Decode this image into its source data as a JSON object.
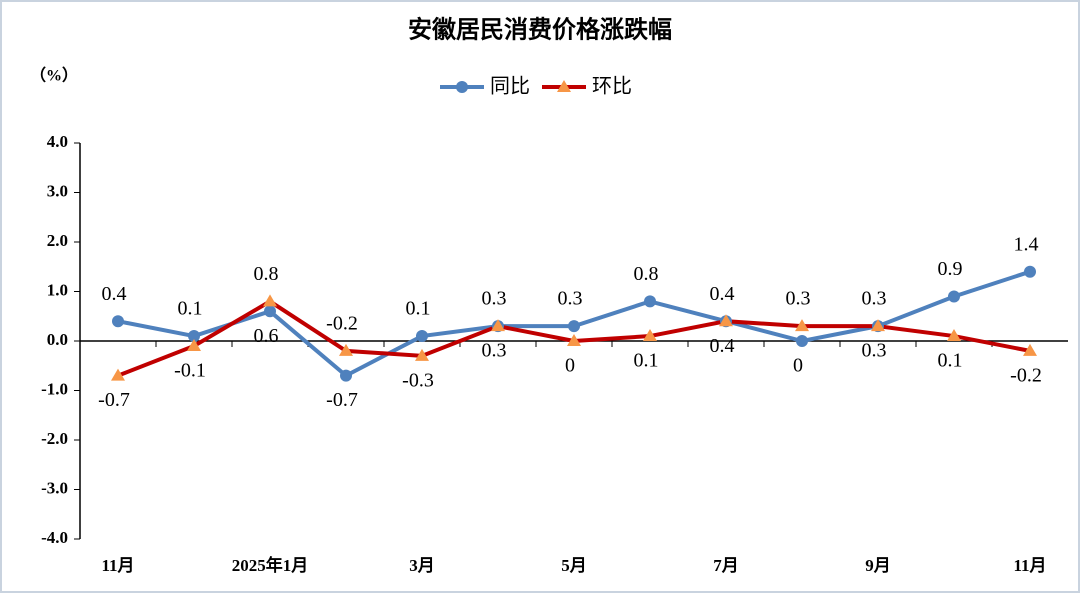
{
  "chart_data": {
    "type": "line",
    "title": "安徽居民消费价格涨跌幅",
    "y_unit": "（%）",
    "categories": [
      "11月",
      null,
      "2025年1月",
      null,
      "3月",
      null,
      "5月",
      null,
      "7月",
      null,
      "9月",
      null,
      "11月"
    ],
    "series": [
      {
        "name": "同比",
        "color": "#4f81bd",
        "marker": "circle",
        "values": [
          0.4,
          0.1,
          0.6,
          -0.7,
          0.1,
          0.3,
          0.3,
          0.8,
          0.4,
          0,
          0.3,
          0.9,
          1.4
        ]
      },
      {
        "name": "环比",
        "color": "#c00000",
        "marker_color": "#f79646",
        "marker": "triangle",
        "values": [
          -0.7,
          -0.1,
          0.8,
          -0.2,
          -0.3,
          0.3,
          0,
          0.1,
          0.4,
          0.3,
          0.3,
          0.1,
          -0.2
        ]
      }
    ],
    "ylim": [
      -4,
      4
    ],
    "yticks": [
      {
        "value": -4,
        "label": "-4.0"
      },
      {
        "value": -3,
        "label": "-3.0"
      },
      {
        "value": -2,
        "label": "-2.0"
      },
      {
        "value": -1,
        "label": "-1.0"
      },
      {
        "value": 0,
        "label": "0.0"
      },
      {
        "value": 1,
        "label": "1.0"
      },
      {
        "value": 2,
        "label": "2.0"
      },
      {
        "value": 3,
        "label": "3.0"
      },
      {
        "value": 4,
        "label": "4.0"
      }
    ],
    "legend": "top",
    "grid": false
  }
}
